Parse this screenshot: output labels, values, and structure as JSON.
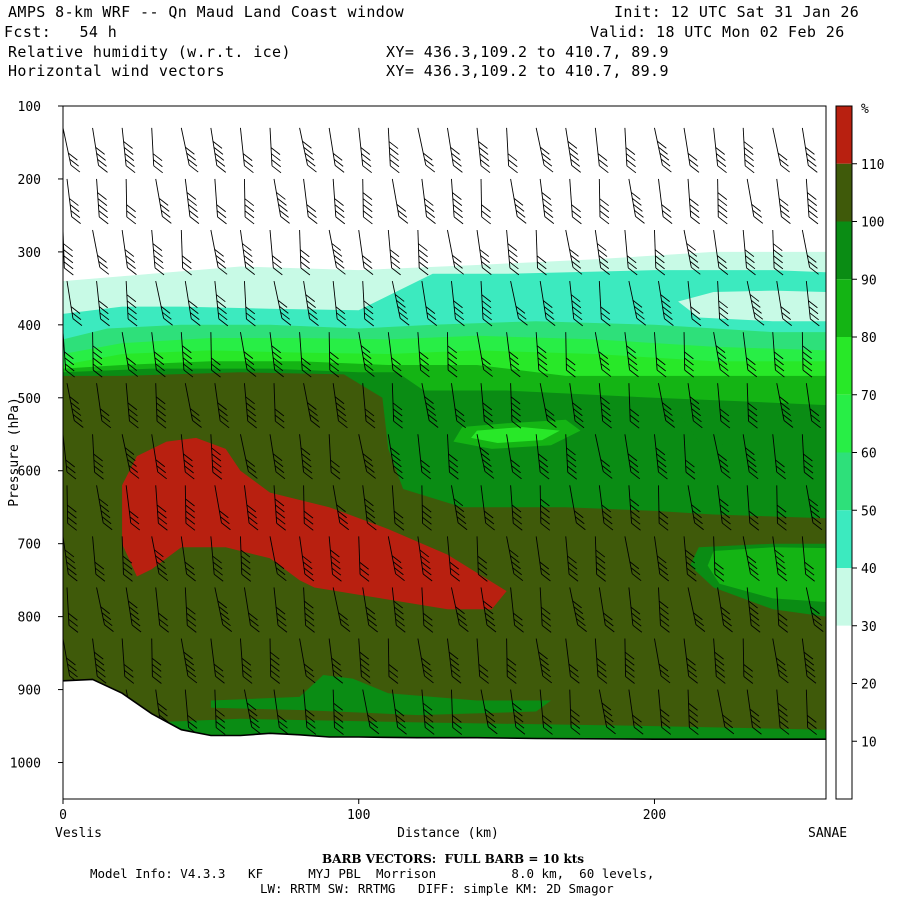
{
  "header": {
    "model_title": "AMPS 8-km WRF -- Qn Maud Land Coast window",
    "init": "Init: 12 UTC Sat 31 Jan 26",
    "fcst": "Fcst:   54 h",
    "valid": "Valid: 18 UTC Mon 02 Feb 26",
    "field1": "Relative humidity (w.r.t. ice)",
    "field2": "Horizontal wind vectors",
    "xy1": "XY= 436.3,109.2 to 410.7, 89.9",
    "xy2": "XY= 436.3,109.2 to 410.7, 89.9"
  },
  "footer": {
    "barb_note": "BARB VECTORS:  FULL BARB = 10 kts",
    "model_info": "Model Info: V4.3.3   KF      MYJ PBL  Morrison          8.0 km,  60 levels,",
    "model_info2": "LW: RRTM SW: RRTMG   DIFF: simple KM: 2D Smagor"
  },
  "colors": {
    "c10_30": "#ffffff",
    "c30_40": "#c8fae6",
    "c40_50": "#3ceabf",
    "c50_60": "#2ee07a",
    "c60_70": "#28ee46",
    "c70_80": "#28e828",
    "c80_90": "#14b414",
    "c90_100": "#0a8c14",
    "c100_110": "#3f5a0a",
    "c110_plus": "#b82010",
    "terrain": "#ffffff",
    "barb": "#000000"
  },
  "chart_data": {
    "type": "heatmap",
    "title": "Relative humidity (w.r.t. ice)",
    "xlabel": "Distance (km)",
    "ylabel": "Pressure (hPa)",
    "x_ticks": [
      0,
      100,
      200
    ],
    "y_ticks": [
      100,
      200,
      300,
      400,
      500,
      600,
      700,
      800,
      900,
      1000
    ],
    "xlim": [
      0,
      258
    ],
    "ylim": [
      1050,
      100
    ],
    "left_endpoint": "Veslis",
    "right_endpoint": "SANAE",
    "colorbar": {
      "unit": "%",
      "levels": [
        10,
        20,
        30,
        40,
        50,
        60,
        70,
        80,
        90,
        100,
        110
      ]
    },
    "terrain_profile": {
      "x": [
        0,
        10,
        20,
        30,
        40,
        50,
        60,
        70,
        80,
        90,
        100,
        120,
        140,
        160,
        200,
        258
      ],
      "pressure": [
        888,
        886,
        905,
        933,
        955,
        963,
        963,
        960,
        962,
        965,
        965,
        966,
        966,
        967,
        968,
        968
      ]
    },
    "regions": [
      {
        "level": "30-40",
        "color_key": "c30_40",
        "pts": [
          [
            0,
            340
          ],
          [
            30,
            330
          ],
          [
            60,
            320
          ],
          [
            100,
            325
          ],
          [
            140,
            318
          ],
          [
            180,
            310
          ],
          [
            220,
            300
          ],
          [
            258,
            300
          ],
          [
            258,
            1050
          ],
          [
            0,
            1050
          ]
        ]
      },
      {
        "level": "40-50",
        "color_key": "c40_50",
        "pts": [
          [
            0,
            385
          ],
          [
            20,
            375
          ],
          [
            40,
            375
          ],
          [
            70,
            378
          ],
          [
            100,
            380
          ],
          [
            125,
            330
          ],
          [
            150,
            330
          ],
          [
            200,
            325
          ],
          [
            240,
            325
          ],
          [
            258,
            328
          ],
          [
            258,
            1050
          ],
          [
            0,
            1050
          ]
        ]
      },
      {
        "level": "30-40",
        "color_key": "c30_40",
        "pts": [
          [
            208,
            368
          ],
          [
            220,
            355
          ],
          [
            240,
            353
          ],
          [
            258,
            355
          ],
          [
            258,
            395
          ],
          [
            240,
            395
          ],
          [
            215,
            390
          ]
        ]
      },
      {
        "level": "50-60",
        "color_key": "c50_60",
        "pts": [
          [
            0,
            420
          ],
          [
            15,
            405
          ],
          [
            40,
            400
          ],
          [
            70,
            400
          ],
          [
            100,
            405
          ],
          [
            125,
            400
          ],
          [
            160,
            395
          ],
          [
            200,
            400
          ],
          [
            240,
            410
          ],
          [
            258,
            410
          ],
          [
            258,
            1050
          ],
          [
            0,
            1050
          ]
        ]
      },
      {
        "level": "60-70",
        "color_key": "c60_70",
        "pts": [
          [
            0,
            440
          ],
          [
            20,
            425
          ],
          [
            50,
            418
          ],
          [
            80,
            418
          ],
          [
            110,
            420
          ],
          [
            140,
            415
          ],
          [
            180,
            420
          ],
          [
            220,
            430
          ],
          [
            258,
            435
          ],
          [
            258,
            1050
          ],
          [
            0,
            1050
          ]
        ]
      },
      {
        "level": "70-80",
        "color_key": "c70_80",
        "pts": [
          [
            0,
            455
          ],
          [
            20,
            440
          ],
          [
            50,
            435
          ],
          [
            80,
            438
          ],
          [
            110,
            440
          ],
          [
            140,
            435
          ],
          [
            180,
            440
          ],
          [
            220,
            450
          ],
          [
            258,
            450
          ],
          [
            258,
            1050
          ],
          [
            0,
            1050
          ]
        ]
      },
      {
        "level": "80-90",
        "color_key": "c80_90",
        "pts": [
          [
            0,
            460
          ],
          [
            20,
            455
          ],
          [
            50,
            450
          ],
          [
            80,
            450
          ],
          [
            110,
            455
          ],
          [
            140,
            455
          ],
          [
            170,
            470
          ],
          [
            210,
            470
          ],
          [
            258,
            470
          ],
          [
            258,
            1050
          ],
          [
            0,
            1050
          ]
        ]
      },
      {
        "level": "90-100",
        "color_key": "c90_100",
        "pts": [
          [
            0,
            465
          ],
          [
            30,
            460
          ],
          [
            70,
            460
          ],
          [
            100,
            465
          ],
          [
            113,
            465
          ],
          [
            122,
            490
          ],
          [
            150,
            490
          ],
          [
            200,
            500
          ],
          [
            230,
            505
          ],
          [
            258,
            510
          ],
          [
            258,
            1050
          ],
          [
            0,
            1050
          ]
        ]
      },
      {
        "level": "100-110",
        "color_key": "c100_110",
        "pts": [
          [
            0,
            470
          ],
          [
            20,
            470
          ],
          [
            60,
            465
          ],
          [
            95,
            468
          ],
          [
            108,
            500
          ],
          [
            110,
            570
          ],
          [
            115,
            625
          ],
          [
            135,
            650
          ],
          [
            170,
            650
          ],
          [
            200,
            655
          ],
          [
            220,
            660
          ],
          [
            258,
            665
          ],
          [
            258,
            1050
          ],
          [
            0,
            1050
          ]
        ]
      },
      {
        "level": "80-90",
        "color_key": "c80_90",
        "pts": [
          [
            135,
            540
          ],
          [
            150,
            535
          ],
          [
            170,
            530
          ],
          [
            175,
            545
          ],
          [
            165,
            565
          ],
          [
            145,
            570
          ],
          [
            132,
            560
          ]
        ]
      },
      {
        "level": "70-80",
        "color_key": "c70_80",
        "pts": [
          [
            140,
            545
          ],
          [
            155,
            540
          ],
          [
            168,
            545
          ],
          [
            162,
            558
          ],
          [
            147,
            562
          ],
          [
            138,
            555
          ]
        ]
      },
      {
        "level": "90-100",
        "color_key": "c90_100",
        "pts": [
          [
            208,
            520
          ],
          [
            230,
            520
          ],
          [
            258,
            530
          ],
          [
            258,
            575
          ],
          [
            235,
            570
          ],
          [
            215,
            560
          ]
        ]
      },
      {
        "level": "90-100",
        "color_key": "c90_100",
        "pts": [
          [
            215,
            705
          ],
          [
            240,
            700
          ],
          [
            258,
            700
          ],
          [
            258,
            800
          ],
          [
            240,
            790
          ],
          [
            220,
            760
          ],
          [
            212,
            730
          ]
        ]
      },
      {
        "level": "80-90",
        "color_key": "c80_90",
        "pts": [
          [
            220,
            710
          ],
          [
            240,
            705
          ],
          [
            258,
            706
          ],
          [
            258,
            780
          ],
          [
            240,
            775
          ],
          [
            222,
            755
          ],
          [
            218,
            730
          ]
        ]
      },
      {
        "level": "90-100",
        "color_key": "c90_100",
        "pts": [
          [
            50,
            915
          ],
          [
            80,
            910
          ],
          [
            88,
            880
          ],
          [
            98,
            885
          ],
          [
            110,
            905
          ],
          [
            140,
            915
          ],
          [
            165,
            915
          ],
          [
            160,
            930
          ],
          [
            120,
            935
          ],
          [
            80,
            928
          ],
          [
            50,
            925
          ]
        ]
      },
      {
        "level": "90-100",
        "color_key": "c90_100",
        "pts": [
          [
            30,
            945
          ],
          [
            60,
            940
          ],
          [
            120,
            945
          ],
          [
            200,
            950
          ],
          [
            258,
            955
          ],
          [
            258,
            970
          ],
          [
            30,
            970
          ]
        ]
      },
      {
        "level": "110+",
        "color_key": "c110_plus",
        "pts": [
          [
            20,
            620
          ],
          [
            25,
            580
          ],
          [
            35,
            560
          ],
          [
            45,
            555
          ],
          [
            55,
            570
          ],
          [
            60,
            600
          ],
          [
            70,
            630
          ],
          [
            90,
            650
          ],
          [
            110,
            680
          ],
          [
            130,
            715
          ],
          [
            150,
            765
          ],
          [
            145,
            790
          ],
          [
            130,
            790
          ],
          [
            115,
            780
          ],
          [
            100,
            770
          ],
          [
            85,
            760
          ],
          [
            80,
            750
          ],
          [
            70,
            720
          ],
          [
            55,
            705
          ],
          [
            40,
            705
          ],
          [
            30,
            735
          ],
          [
            25,
            745
          ],
          [
            20,
            700
          ]
        ]
      }
    ],
    "wind_columns_x": [
      0,
      10,
      20,
      30,
      40,
      50,
      60,
      70,
      80,
      90,
      100,
      110,
      120,
      130,
      140,
      150,
      160,
      170,
      180,
      190,
      200,
      210,
      220,
      230,
      240,
      250,
      258
    ],
    "wind_rows_p": [
      130,
      200,
      270,
      340,
      410,
      480,
      550,
      620,
      690,
      760,
      830,
      900
    ]
  }
}
